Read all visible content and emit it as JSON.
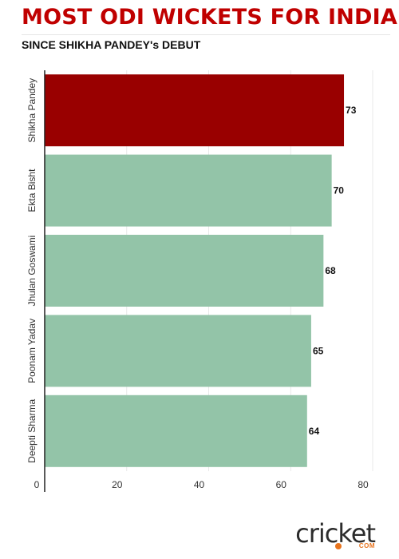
{
  "header": {
    "title": "MOST ODI WICKETS FOR INDIA",
    "subtitle": "SINCE SHIKHA PANDEY's DEBUT"
  },
  "chart_data": {
    "type": "bar",
    "orientation": "horizontal",
    "categories": [
      "Shikha Pandey",
      "Ekta Bisht",
      "Jhulan Goswami",
      "Poonam Yadav",
      "Deepti Sharma"
    ],
    "values": [
      73,
      70,
      68,
      65,
      64
    ],
    "data_labels": [
      "73",
      "70",
      "68",
      "65",
      "64"
    ],
    "x_ticks": [
      0,
      20,
      40,
      60,
      80
    ],
    "xlim": [
      0,
      80
    ],
    "title": "MOST ODI WICKETS FOR INDIA",
    "subtitle": "SINCE SHIKHA PANDEY's DEBUT",
    "highlight_color": "#990000",
    "bar_color": "#93c4a8",
    "grid": true
  },
  "branding": {
    "logo_word": "cricket",
    "logo_sub": "COM",
    "accent_color": "#e8731c"
  }
}
